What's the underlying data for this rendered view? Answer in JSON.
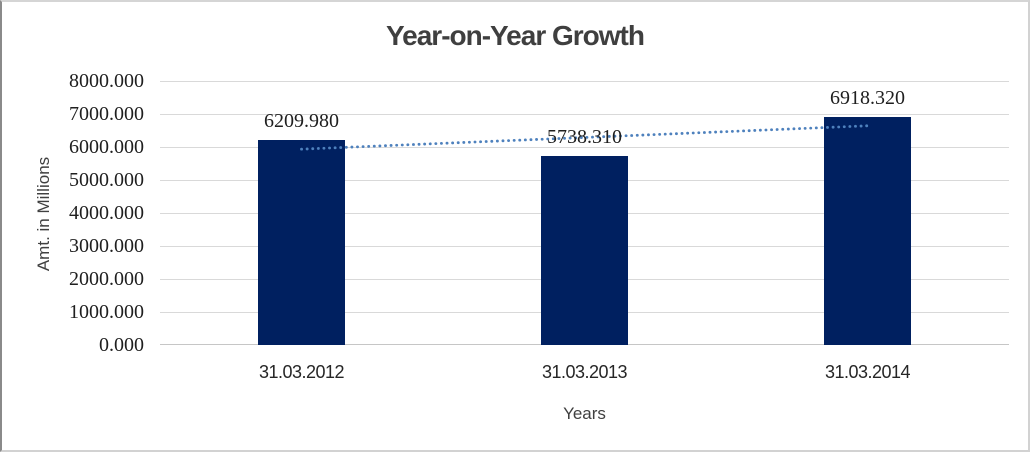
{
  "chart_data": {
    "type": "bar",
    "title": "Year-on-Year Growth",
    "xlabel": "Years",
    "ylabel": "Amt. in Millions",
    "categories": [
      "31.03.2012",
      "31.03.2013",
      "31.03.2014"
    ],
    "values": [
      6209.98,
      5738.31,
      6918.32
    ],
    "data_labels": [
      "6209.980",
      "5738.310",
      "6918.320"
    ],
    "ylim": [
      0,
      8000
    ],
    "ytick_step": 1000,
    "ytick_labels": [
      "0.000",
      "1000.000",
      "2000.000",
      "3000.000",
      "4000.000",
      "5000.000",
      "6000.000",
      "7000.000",
      "8000.000"
    ],
    "grid": true,
    "legend_position": "none",
    "trendline": {
      "type": "linear",
      "style": "dotted",
      "values": [
        5934.7,
        6288.9,
        6643.0
      ],
      "color": "#4E81BD"
    },
    "colors": {
      "bar": "#002060",
      "gridline": "#d9d9d9",
      "axis_line": "#c6c6c6",
      "title": "#3f3f3f",
      "axis_title": "#404040",
      "tick_label": "#1f1f1f"
    }
  }
}
